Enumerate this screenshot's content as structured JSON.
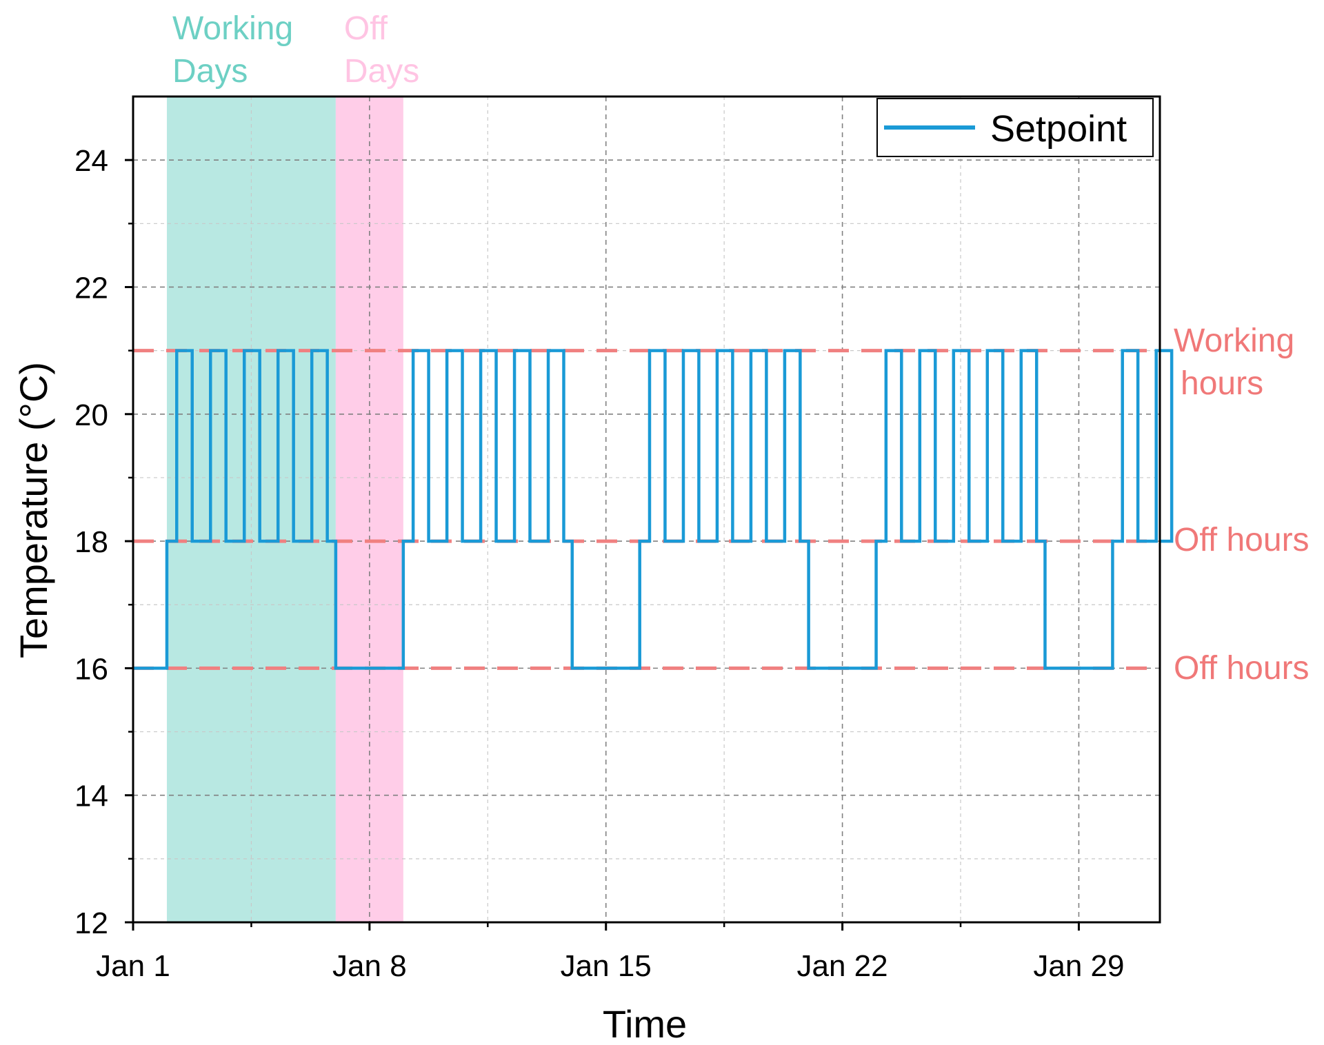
{
  "chart_data": {
    "type": "line",
    "title": "",
    "xlabel": "Time",
    "ylabel": "Temperature (°C)",
    "xlim": [
      1,
      31.4
    ],
    "ylim": [
      12,
      25
    ],
    "x_tick_values": [
      1,
      8,
      15,
      22,
      29
    ],
    "x_ticks": [
      "Jan 1",
      "Jan 8",
      "Jan 15",
      "Jan 22",
      "Jan 29"
    ],
    "y_ticks": [
      12,
      14,
      16,
      18,
      20,
      22,
      24
    ],
    "grid": true,
    "legend": {
      "position": "top-right",
      "entries": [
        "Setpoint"
      ]
    },
    "bands": [
      {
        "label": "Working Days",
        "label_lines": [
          "Working",
          "Days"
        ],
        "x_start": 2,
        "x_end": 7,
        "color": "#b8e8e2",
        "text_color": "#6dd0c4"
      },
      {
        "label": "Off Days",
        "label_lines": [
          "Off",
          "Days"
        ],
        "x_start": 7,
        "x_end": 9,
        "color": "#ffcde8",
        "text_color": "#ffc4e3"
      }
    ],
    "reference_lines": [
      {
        "y": 21,
        "label": "Working hours",
        "label_lines": [
          "Working",
          "hours"
        ]
      },
      {
        "y": 18,
        "label": "Off hours",
        "label_lines": [
          "Off hours"
        ]
      },
      {
        "y": 16,
        "label": "Off hours",
        "label_lines": [
          "Off hours"
        ]
      }
    ],
    "series": [
      {
        "name": "Setpoint",
        "color": "#1a9ad6",
        "interpolation": "step",
        "schedule": {
          "working_hours_setpoint": 21,
          "off_hours_setpoint": 18,
          "off_days_setpoint": 16,
          "day_start_hour": 7,
          "day_end_hour": 18,
          "working_days": [
            2,
            3,
            4,
            5,
            6,
            9,
            10,
            11,
            12,
            13,
            16,
            17,
            18,
            19,
            20,
            23,
            24,
            25,
            26,
            27,
            30,
            31
          ],
          "off_days": [
            1,
            7,
            8,
            14,
            15,
            21,
            22,
            28,
            29
          ]
        }
      }
    ]
  },
  "colors": {
    "setpoint": "#1a9ad6",
    "reference": "#f08080",
    "reference_text": "#f07878",
    "grid": "#c8c8c8",
    "axis": "#000000"
  }
}
